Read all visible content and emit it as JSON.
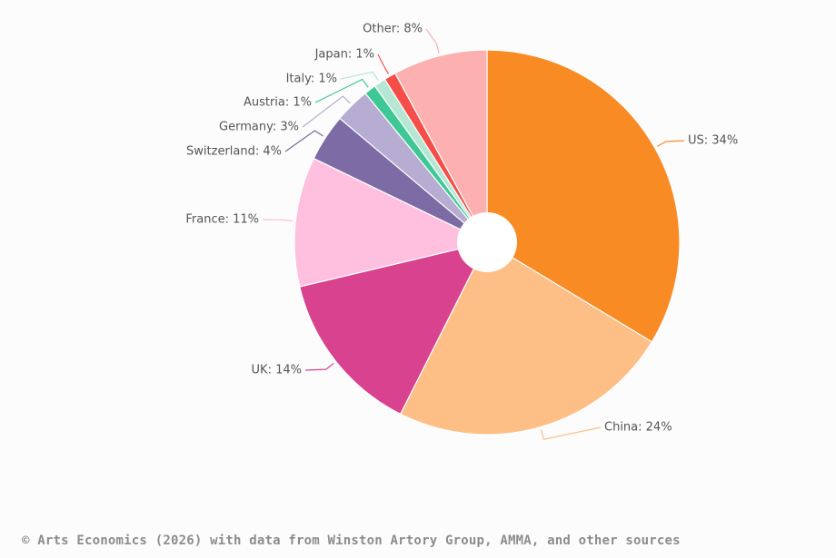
{
  "chart_data": {
    "type": "pie",
    "donut": true,
    "start_angle_deg": 0,
    "direction": "clockwise",
    "slices": [
      {
        "label": "US",
        "value": 34,
        "display": "US: 34%",
        "color": "#f98b25"
      },
      {
        "label": "China",
        "value": 24,
        "display": "China: 24%",
        "color": "#fdbf85"
      },
      {
        "label": "UK",
        "value": 14,
        "display": "UK: 14%",
        "color": "#d8428f"
      },
      {
        "label": "France",
        "value": 11,
        "display": "France: 11%",
        "color": "#fec0de"
      },
      {
        "label": "Switzerland",
        "value": 4,
        "display": "Switzerland: 4%",
        "color": "#7c6ba4"
      },
      {
        "label": "Germany",
        "value": 3,
        "display": "Germany: 3%",
        "color": "#b7acd1"
      },
      {
        "label": "Austria",
        "value": 1,
        "display": "Austria: 1%",
        "color": "#3fc895"
      },
      {
        "label": "Italy",
        "value": 1,
        "display": "Italy: 1%",
        "color": "#b6e6d4"
      },
      {
        "label": "Japan",
        "value": 1,
        "display": "Japan: 1%",
        "color": "#f54e48"
      },
      {
        "label": "Other",
        "value": 8,
        "display": "Other: 8%",
        "color": "#fdb0b0"
      }
    ]
  },
  "source": "© Arts Economics (2026) with data from Winston Artory Group, AMMA, and other sources"
}
